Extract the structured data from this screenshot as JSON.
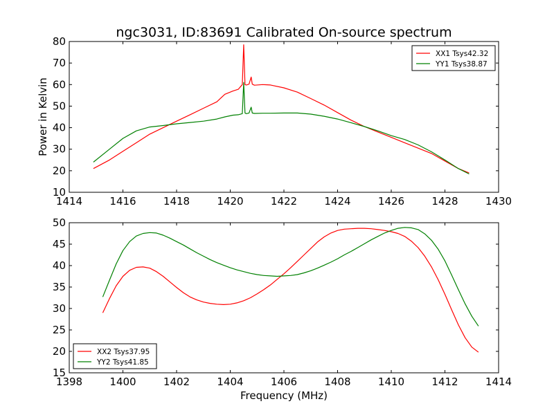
{
  "figure": {
    "title": "ngc3031, ID:83691 Calibrated On-source spectrum"
  },
  "chart_data": [
    {
      "type": "line",
      "title": "ngc3031, ID:83691 Calibrated On-source spectrum",
      "xlabel": "",
      "ylabel": "Power in Kelvin",
      "xlim": [
        1414,
        1430
      ],
      "ylim": [
        10,
        80
      ],
      "xticks": [
        1414,
        1416,
        1418,
        1420,
        1422,
        1424,
        1426,
        1428,
        1430
      ],
      "yticks": [
        10,
        20,
        30,
        40,
        50,
        60,
        70,
        80
      ],
      "grid": false,
      "legend_position": "top-right",
      "series": [
        {
          "name": "XX1 Tsys42.32",
          "color": "#ff0000",
          "x": [
            1414.9,
            1415.5,
            1416,
            1416.5,
            1417,
            1417.5,
            1418,
            1418.5,
            1419,
            1419.5,
            1419.8,
            1420.1,
            1420.3,
            1420.45,
            1420.5,
            1420.55,
            1420.6,
            1420.7,
            1420.78,
            1420.82,
            1420.9,
            1421.2,
            1421.5,
            1422,
            1422.5,
            1423,
            1423.5,
            1424,
            1424.5,
            1425,
            1425.5,
            1426,
            1426.5,
            1427,
            1427.5,
            1428,
            1428.5,
            1428.9
          ],
          "y": [
            21,
            25,
            29,
            33,
            37,
            40,
            43,
            46,
            49,
            52,
            55.5,
            57,
            57.8,
            60,
            78.5,
            60,
            59.8,
            60.2,
            63.5,
            60.2,
            59.7,
            60,
            59.8,
            58.5,
            56.5,
            53.5,
            50.5,
            47,
            43.5,
            40.5,
            38,
            35.5,
            33,
            30.5,
            28,
            24.5,
            21,
            19
          ]
        },
        {
          "name": "YY1 Tsys38.87",
          "color": "#008000",
          "x": [
            1414.9,
            1415.5,
            1416,
            1416.5,
            1417,
            1417.5,
            1418,
            1418.5,
            1419,
            1419.5,
            1419.8,
            1420.1,
            1420.3,
            1420.45,
            1420.5,
            1420.55,
            1420.6,
            1420.7,
            1420.78,
            1420.82,
            1420.9,
            1421.2,
            1421.5,
            1422,
            1422.5,
            1423,
            1423.5,
            1424,
            1424.5,
            1425,
            1425.5,
            1426,
            1426.5,
            1427,
            1427.5,
            1428,
            1428.5,
            1428.9
          ],
          "y": [
            24,
            30,
            35,
            38.5,
            40.3,
            41,
            41.8,
            42.4,
            43,
            44,
            45,
            45.8,
            46,
            46.5,
            61,
            46.8,
            46.5,
            46.8,
            49.5,
            46.8,
            46.6,
            46.7,
            46.7,
            46.8,
            46.8,
            46.3,
            45.3,
            44,
            42.3,
            40.5,
            38.5,
            36.3,
            34.5,
            32,
            28.8,
            25,
            21,
            18.5
          ]
        }
      ]
    },
    {
      "type": "line",
      "title": "",
      "xlabel": "Frequency (MHz)",
      "ylabel": "",
      "xlim": [
        1398,
        1414
      ],
      "ylim": [
        15,
        50
      ],
      "xticks": [
        1398,
        1400,
        1402,
        1404,
        1406,
        1408,
        1410,
        1412,
        1414
      ],
      "yticks": [
        15,
        20,
        25,
        30,
        35,
        40,
        45,
        50
      ],
      "grid": false,
      "legend_position": "bottom-left",
      "series": [
        {
          "name": "XX2 Tsys37.95",
          "color": "#ff0000",
          "x": [
            1399.25,
            1399.5,
            1399.75,
            1400,
            1400.25,
            1400.5,
            1400.75,
            1401,
            1401.25,
            1401.5,
            1401.75,
            1402,
            1402.25,
            1402.5,
            1402.75,
            1403,
            1403.25,
            1403.5,
            1403.75,
            1404,
            1404.25,
            1404.5,
            1404.75,
            1405,
            1405.25,
            1405.5,
            1405.75,
            1406,
            1406.25,
            1406.5,
            1406.75,
            1407,
            1407.25,
            1407.5,
            1407.75,
            1408,
            1408.25,
            1408.5,
            1408.75,
            1409,
            1409.25,
            1409.5,
            1409.75,
            1410,
            1410.25,
            1410.5,
            1410.75,
            1411,
            1411.25,
            1411.5,
            1411.75,
            1412,
            1412.25,
            1412.5,
            1412.75,
            1413,
            1413.25
          ],
          "y": [
            29,
            32.3,
            35.3,
            37.5,
            38.9,
            39.6,
            39.7,
            39.4,
            38.6,
            37.5,
            36.2,
            34.9,
            33.7,
            32.7,
            32,
            31.5,
            31.2,
            31,
            30.9,
            31,
            31.3,
            31.8,
            32.5,
            33.4,
            34.4,
            35.5,
            36.8,
            38.1,
            39.5,
            41,
            42.5,
            44,
            45.5,
            46.7,
            47.6,
            48.2,
            48.5,
            48.6,
            48.7,
            48.7,
            48.6,
            48.4,
            48.2,
            47.9,
            47.5,
            46.8,
            45.7,
            44.2,
            42.2,
            39.7,
            36.7,
            33.3,
            29.7,
            26.2,
            23.2,
            21,
            19.8
          ]
        },
        {
          "name": "YY2 Tsys41.85",
          "color": "#008000",
          "x": [
            1399.25,
            1399.5,
            1399.75,
            1400,
            1400.25,
            1400.5,
            1400.75,
            1401,
            1401.25,
            1401.5,
            1401.75,
            1402,
            1402.25,
            1402.5,
            1402.75,
            1403,
            1403.25,
            1403.5,
            1403.75,
            1404,
            1404.25,
            1404.5,
            1404.75,
            1405,
            1405.25,
            1405.5,
            1405.75,
            1406,
            1406.25,
            1406.5,
            1406.75,
            1407,
            1407.25,
            1407.5,
            1407.75,
            1408,
            1408.25,
            1408.5,
            1408.75,
            1409,
            1409.25,
            1409.5,
            1409.75,
            1410,
            1410.25,
            1410.5,
            1410.75,
            1411,
            1411.25,
            1411.5,
            1411.75,
            1412,
            1412.25,
            1412.5,
            1412.75,
            1413,
            1413.25
          ],
          "y": [
            32.7,
            36.6,
            40.4,
            43.5,
            45.6,
            46.9,
            47.5,
            47.7,
            47.6,
            47.1,
            46.4,
            45.6,
            44.8,
            43.9,
            43,
            42.2,
            41.4,
            40.7,
            40.1,
            39.5,
            39,
            38.6,
            38.2,
            37.9,
            37.7,
            37.6,
            37.5,
            37.6,
            37.7,
            37.9,
            38.3,
            38.8,
            39.4,
            40.1,
            40.8,
            41.6,
            42.5,
            43.3,
            44.2,
            45.1,
            46,
            46.8,
            47.6,
            48.2,
            48.7,
            48.9,
            48.8,
            48.4,
            47.4,
            45.9,
            43.8,
            41.1,
            37.8,
            34.4,
            31.1,
            28.2,
            25.9
          ]
        }
      ]
    }
  ]
}
